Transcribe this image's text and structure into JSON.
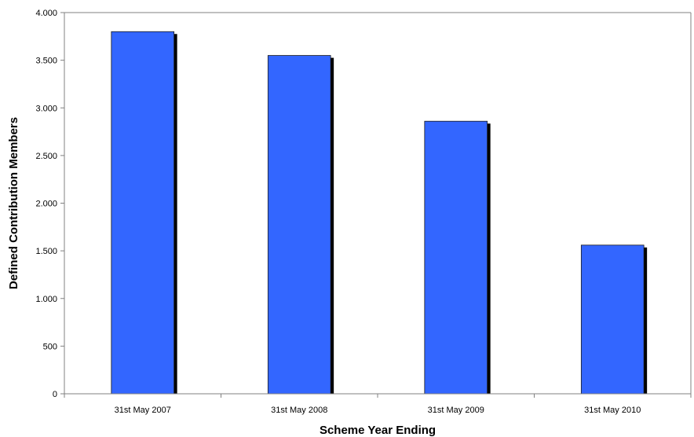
{
  "chart_data": {
    "type": "bar",
    "title": "",
    "xlabel": "Scheme Year Ending",
    "ylabel": "Defined Contribution Members",
    "categories": [
      "31st May 2007",
      "31st May 2008",
      "31st May 2009",
      "31st May 2010"
    ],
    "values": [
      3800,
      3550,
      2860,
      1560
    ],
    "ylim": [
      0,
      4000
    ],
    "yticks": [
      0,
      500,
      1000,
      1500,
      2000,
      2500,
      3000,
      3500,
      4000
    ],
    "ytick_labels": [
      "0",
      "500",
      "1.000",
      "1.500",
      "2.000",
      "2.500",
      "3.000",
      "3.500",
      "4.000"
    ],
    "grid": false,
    "legend": "none",
    "colors": {
      "bar": "#3366FF",
      "shadow": "#000000",
      "axis": "#808080"
    }
  }
}
